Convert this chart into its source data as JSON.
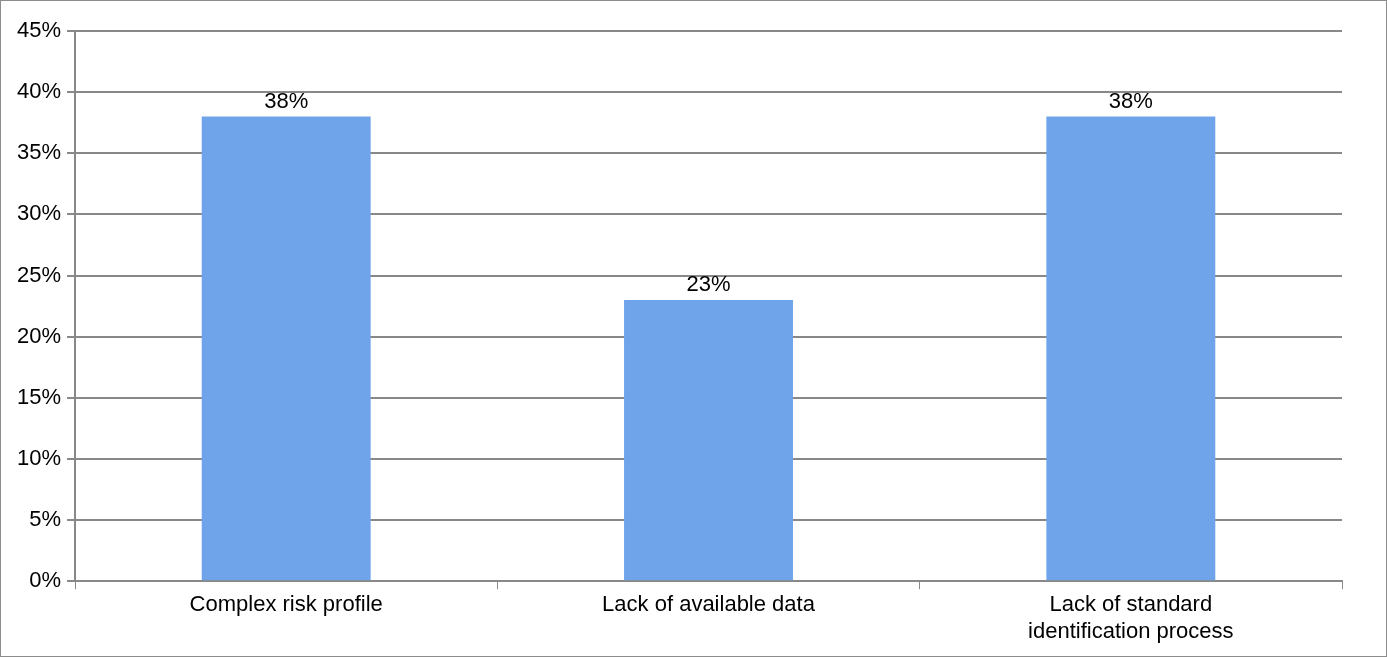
{
  "chart_data": {
    "type": "bar",
    "categories": [
      "Complex risk profile",
      "Lack of available data",
      "Lack of standard identification process"
    ],
    "values": [
      38,
      23,
      38
    ],
    "color": "#6fa3ea",
    "value_labels": [
      "38%",
      "23%",
      "38%"
    ],
    "ylim": [
      0,
      45
    ],
    "yticks": [
      {
        "value": 0,
        "label": "0%"
      },
      {
        "value": 5,
        "label": "5%"
      },
      {
        "value": 10,
        "label": "10%"
      },
      {
        "value": 15,
        "label": "15%"
      },
      {
        "value": 20,
        "label": "20%"
      },
      {
        "value": 25,
        "label": "25%"
      },
      {
        "value": 30,
        "label": "30%"
      },
      {
        "value": 35,
        "label": "35%"
      },
      {
        "value": 40,
        "label": "40%"
      },
      {
        "value": 45,
        "label": "45%"
      }
    ],
    "grid": "y",
    "legend": false
  }
}
